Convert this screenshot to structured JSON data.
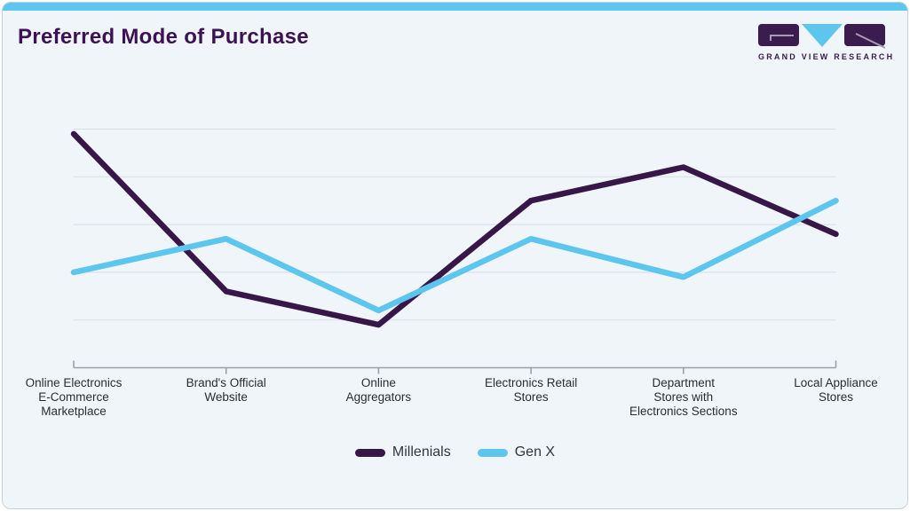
{
  "brand": {
    "logo_text": "GRAND VIEW RESEARCH",
    "purple": "#3a1c4f",
    "blue": "#5cc6ee"
  },
  "chart_data": {
    "type": "line",
    "title": "Preferred Mode of Purchase",
    "categories": [
      "Online Electronics\nE-Commerce\nMarketplace",
      "Brand's Official\nWebsite",
      "Online\nAggregators",
      "Electronics Retail\nStores",
      "Department\nStores with\nElectronics Sections",
      "Local Appliance\nStores"
    ],
    "series": [
      {
        "name": "Millenials",
        "color": "#371748",
        "values": [
          49,
          16,
          9,
          35,
          42,
          28
        ]
      },
      {
        "name": "Gen X",
        "color": "#5cc6ee",
        "values": [
          20,
          27,
          12,
          27,
          19,
          35
        ]
      }
    ],
    "xlabel": "",
    "ylabel": "",
    "ylim": [
      0,
      55
    ],
    "gridline_values": [
      10,
      20,
      30,
      40,
      50
    ],
    "y_axis_labels_visible": false,
    "grid": true,
    "legend_position": "bottom",
    "colors": {
      "gridline": "#d9dee3",
      "axis": "#97a0a8",
      "background": "#f0f5fa"
    }
  }
}
